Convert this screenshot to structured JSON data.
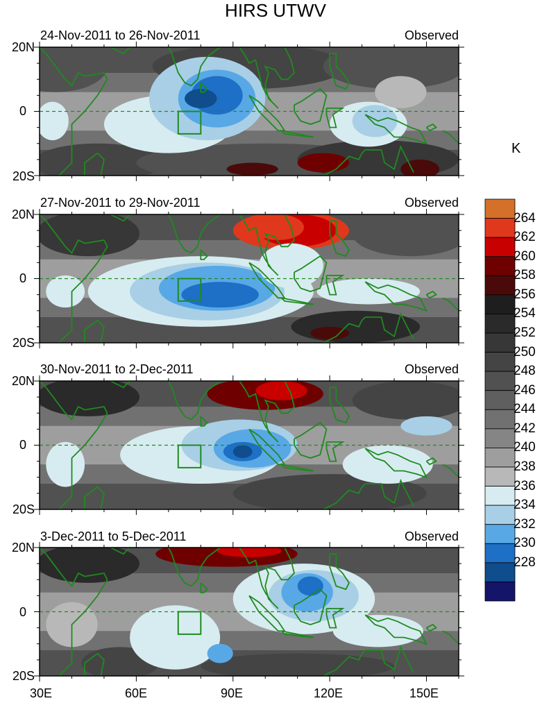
{
  "title": "HIRS UTWV",
  "unit_label": "K",
  "lat_labels": [
    "20N",
    "0",
    "20S"
  ],
  "lon_labels": [
    "30E",
    "60E",
    "90E",
    "120E",
    "150E"
  ],
  "lon_values": [
    30,
    60,
    90,
    120,
    150
  ],
  "panels": [
    {
      "period": "24-Nov-2011 to 26-Nov-2011",
      "source": "Observed"
    },
    {
      "period": "27-Nov-2011 to 29-Nov-2011",
      "source": "Observed"
    },
    {
      "period": "30-Nov-2011 to 2-Dec-2011",
      "source": "Observed"
    },
    {
      "period": "3-Dec-2011 to 5-Dec-2011",
      "source": "Observed"
    }
  ],
  "map_extent": {
    "lon_min": 30,
    "lon_max": 160,
    "lat_min": -20,
    "lat_max": 20
  },
  "box_region": {
    "lon_min": 73,
    "lon_max": 80,
    "lat_min": -7,
    "lat_max": 0
  },
  "colorbar": {
    "labels": [
      "264",
      "262",
      "260",
      "258",
      "256",
      "254",
      "252",
      "250",
      "248",
      "246",
      "244",
      "242",
      "240",
      "238",
      "236",
      "234",
      "232",
      "230",
      "228"
    ],
    "colors": [
      "#d4702a",
      "#e0381c",
      "#c80000",
      "#6e0000",
      "#4a0a0a",
      "#1e1e1e",
      "#2a2a2a",
      "#373737",
      "#444444",
      "#515151",
      "#5f5f5f",
      "#717171",
      "#858585",
      "#9e9e9e",
      "#b8b8b8",
      "#d7ecf0",
      "#a8cfe6",
      "#58a8e6",
      "#1e6fc6",
      "#0f4d8c",
      "#141468"
    ]
  },
  "colors": {
    "coast": "#1f8a1f",
    "background": "#ffffff"
  }
}
